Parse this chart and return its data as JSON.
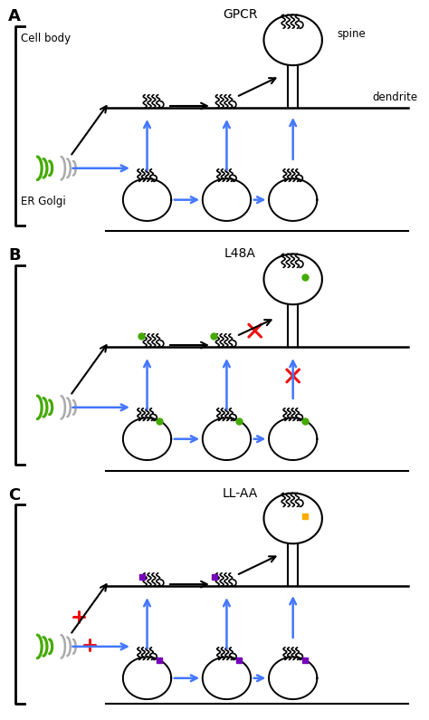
{
  "bg_color": "#ffffff",
  "blue": "#4477ff",
  "black": "#000000",
  "green": "#44aa00",
  "red": "#ee1111",
  "purple": "#7700bb",
  "orange": "#ffaa00",
  "gray": "#aaaaaa",
  "panel_labels": [
    "A",
    "B",
    "C"
  ],
  "panel_titles": [
    "GPCR",
    "L48A",
    "LL-AA"
  ],
  "panel_tops": [
    5,
    270,
    535
  ],
  "cell_body_label": "Cell body",
  "er_golgi_label": "ER Golgi",
  "spine_label": "spine",
  "dendrite_label": "dendrite"
}
